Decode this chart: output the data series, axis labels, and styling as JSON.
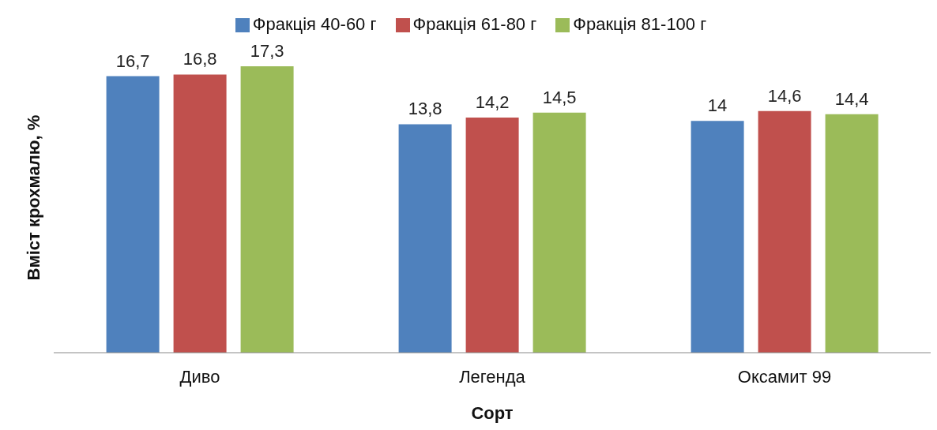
{
  "chart_data": {
    "type": "bar",
    "xlabel": "Сорт",
    "ylabel": "Вміст крохмалю, %",
    "categories": [
      "Диво",
      "Легенда",
      "Оксамит 99"
    ],
    "series": [
      {
        "name": "Фракція 40-60 г",
        "color": "#4f81bd",
        "values": [
          16.7,
          13.8,
          14
        ],
        "value_labels": [
          "16,7",
          "13,8",
          "14"
        ]
      },
      {
        "name": "Фракція 61-80 г",
        "color": "#c0504d",
        "values": [
          16.8,
          14.2,
          14.6
        ],
        "value_labels": [
          "16,8",
          "14,2",
          "14,6"
        ]
      },
      {
        "name": "Фракція 81-100 г",
        "color": "#9bbb59",
        "values": [
          17.3,
          14.5,
          14.4
        ],
        "value_labels": [
          "17,3",
          "14,5",
          "14,4"
        ]
      }
    ],
    "tick_labels": "x",
    "legend": "top",
    "grid": false
  }
}
